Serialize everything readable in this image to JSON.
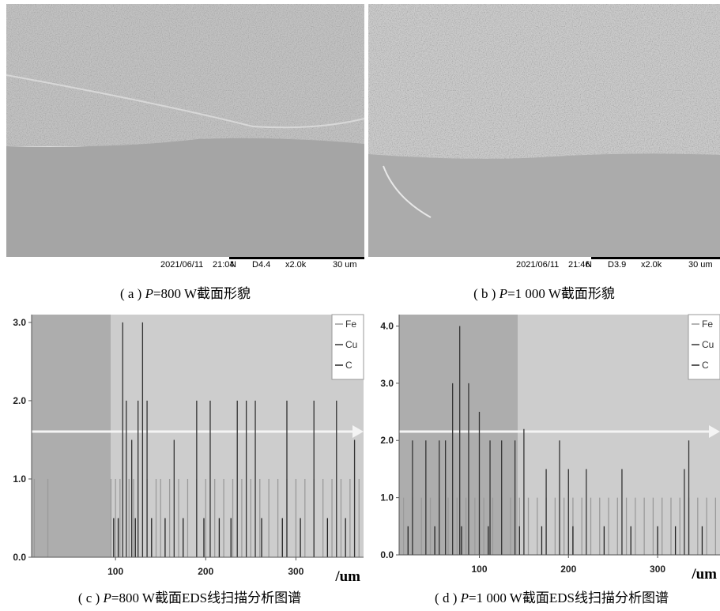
{
  "images": [
    {
      "date": "2021/06/11",
      "time": "21:04",
      "mode": "N",
      "distance": "D4.4",
      "magnification": "x2.0k",
      "scale": "30 um",
      "caption": {
        "prefix": "( a ) ",
        "variable": "P",
        "rest": "=800 W截面形貌"
      }
    },
    {
      "date": "2021/06/11",
      "time": "21:46",
      "mode": "N",
      "distance": "D3.9",
      "magnification": "x2.0k",
      "scale": "30 um",
      "caption": {
        "prefix": "( b ) ",
        "variable": "P",
        "rest": "=1 000 W截面形貌"
      }
    }
  ],
  "chart_data": [
    {
      "type": "stem",
      "x_label": "/um",
      "legend": "upper right",
      "caption": {
        "prefix": "( c ) ",
        "variable": "P",
        "rest": "=800 W截面EDS线扫描分析图谱"
      },
      "xlim": [
        7,
        375
      ],
      "xticks": [
        100,
        200,
        300
      ],
      "ylim": [
        0,
        3.1
      ],
      "yticks": [
        {
          "value": 0,
          "label": "0.0"
        },
        {
          "value": 1,
          "label": "1.0"
        },
        {
          "value": 2,
          "label": "2.0"
        },
        {
          "value": 3,
          "label": "3.0"
        }
      ],
      "series": [
        {
          "name": "Fe",
          "color": "#9a9a9a",
          "x": [
            10,
            25,
            95,
            100,
            105,
            115,
            120,
            135,
            145,
            150,
            160,
            170,
            180,
            190,
            200,
            210,
            220,
            230,
            240,
            250,
            260,
            270,
            280,
            290,
            300,
            310,
            320,
            330,
            340,
            350,
            360,
            370
          ],
          "values": [
            1,
            1,
            1,
            1,
            1,
            1,
            1,
            1,
            1,
            1,
            1,
            1,
            1,
            1,
            1,
            1,
            1,
            1,
            1,
            1,
            1,
            1,
            1,
            1,
            1,
            1,
            1,
            1,
            1,
            1,
            1,
            1
          ]
        },
        {
          "name": "Cu",
          "color": "#333333",
          "x": [
            108,
            112,
            118,
            125,
            130,
            135,
            165,
            190,
            205,
            235,
            245,
            255,
            290,
            320,
            345,
            365
          ],
          "values": [
            3,
            2,
            1.5,
            2,
            3,
            2,
            1.5,
            2,
            2,
            2,
            2,
            2,
            2,
            2,
            2,
            1.5
          ]
        },
        {
          "name": "C",
          "color": "#222222",
          "x": [
            98,
            103,
            122,
            140,
            155,
            175,
            198,
            215,
            228,
            262,
            285,
            305,
            335,
            355
          ],
          "values": [
            0.5,
            0.5,
            0.5,
            0.5,
            0.5,
            0.5,
            0.5,
            0.5,
            0.5,
            0.5,
            0.5,
            0.5,
            0.5,
            0.5
          ]
        }
      ]
    },
    {
      "type": "stem",
      "x_label": "/um",
      "legend": "upper right",
      "caption": {
        "prefix": "( d ) ",
        "variable": "P",
        "rest": "=1 000 W截面EDS线扫描分析图谱"
      },
      "xlim": [
        10,
        370
      ],
      "xticks": [
        100,
        200,
        300
      ],
      "ylim": [
        0,
        4.2
      ],
      "yticks": [
        {
          "value": 0,
          "label": "0.0"
        },
        {
          "value": 1,
          "label": "1.0"
        },
        {
          "value": 2,
          "label": "2.0"
        },
        {
          "value": 3,
          "label": "3.0"
        },
        {
          "value": 4,
          "label": "4.0"
        }
      ],
      "series": [
        {
          "name": "Fe",
          "color": "#9a9a9a",
          "x": [
            15,
            25,
            35,
            45,
            55,
            65,
            75,
            85,
            95,
            105,
            115,
            125,
            135,
            145,
            155,
            165,
            175,
            185,
            195,
            205,
            215,
            225,
            235,
            245,
            255,
            265,
            275,
            285,
            295,
            305,
            315,
            325,
            335,
            345,
            355,
            365
          ],
          "values": [
            1,
            1,
            1,
            1,
            1,
            1,
            1,
            1,
            1,
            1,
            1,
            1,
            1,
            1,
            1,
            1,
            1,
            1,
            1,
            1,
            1,
            1,
            1,
            1,
            1,
            1,
            1,
            1,
            1,
            1,
            1,
            1,
            1,
            1,
            1,
            1
          ]
        },
        {
          "name": "Cu",
          "color": "#333333",
          "x": [
            25,
            40,
            55,
            62,
            70,
            78,
            88,
            100,
            112,
            125,
            140,
            150,
            175,
            190,
            200,
            220,
            260,
            330,
            335
          ],
          "values": [
            2,
            2,
            2,
            2,
            3,
            4,
            3,
            2.5,
            2,
            2,
            2,
            2.2,
            1.5,
            2,
            1.5,
            1.5,
            1.5,
            1.5,
            2
          ]
        },
        {
          "name": "C",
          "color": "#222222",
          "x": [
            20,
            50,
            80,
            110,
            145,
            170,
            205,
            240,
            270,
            300,
            320,
            350
          ],
          "values": [
            0.5,
            0.5,
            0.5,
            0.5,
            0.5,
            0.5,
            0.5,
            0.5,
            0.5,
            0.5,
            0.5,
            0.5
          ]
        }
      ]
    }
  ]
}
